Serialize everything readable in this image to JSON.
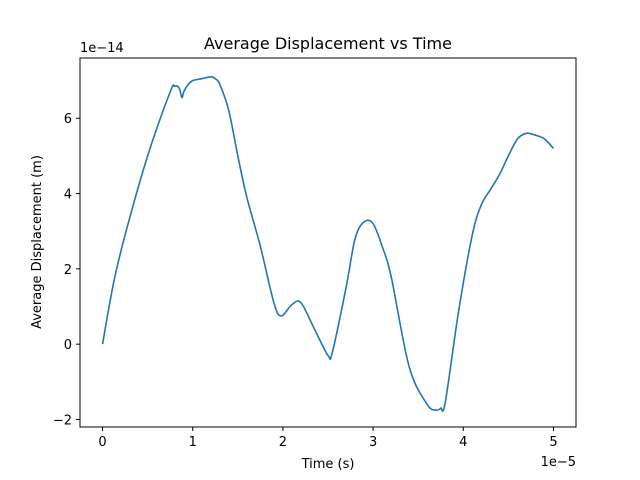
{
  "chart_data": {
    "type": "line",
    "title": "Average Displacement vs Time",
    "xlabel": "Time (s)",
    "ylabel": "Average Displacement (m)",
    "x_offset_label": "1e−5",
    "y_offset_label": "1e−14",
    "xlim": [
      -0.25,
      5.25
    ],
    "ylim": [
      -2.2,
      7.6
    ],
    "x_ticks": [
      {
        "value": 0,
        "label": "0"
      },
      {
        "value": 1,
        "label": "1"
      },
      {
        "value": 2,
        "label": "2"
      },
      {
        "value": 3,
        "label": "3"
      },
      {
        "value": 4,
        "label": "4"
      },
      {
        "value": 5,
        "label": "5"
      }
    ],
    "y_ticks": [
      {
        "value": -2,
        "label": "−2"
      },
      {
        "value": 0,
        "label": "0"
      },
      {
        "value": 2,
        "label": "2"
      },
      {
        "value": 4,
        "label": "4"
      },
      {
        "value": 6,
        "label": "6"
      }
    ],
    "grid": false,
    "series": [
      {
        "color": "#1f77b4",
        "x": [
          0,
          0.12,
          0.25,
          0.5,
          0.75,
          0.8,
          0.85,
          0.88,
          0.9,
          0.95,
          1.0,
          1.1,
          1.2,
          1.25,
          1.3,
          1.4,
          1.5,
          1.6,
          1.75,
          1.9,
          1.98,
          2.1,
          2.2,
          2.35,
          2.5,
          2.55,
          2.7,
          2.8,
          2.9,
          3.0,
          3.1,
          3.2,
          3.4,
          3.6,
          3.7,
          3.75,
          3.8,
          3.95,
          4.1,
          4.2,
          4.3,
          4.4,
          4.5,
          4.6,
          4.7,
          4.8,
          4.9,
          5.0
        ],
        "y": [
          0,
          1.6,
          2.9,
          5.0,
          6.7,
          6.85,
          6.8,
          6.55,
          6.7,
          6.9,
          7.0,
          7.05,
          7.1,
          7.05,
          6.9,
          6.2,
          5.0,
          3.9,
          2.6,
          1.1,
          0.75,
          1.05,
          1.1,
          0.4,
          -0.3,
          -0.2,
          1.5,
          2.8,
          3.25,
          3.2,
          2.6,
          1.8,
          -0.6,
          -1.6,
          -1.75,
          -1.7,
          -1.55,
          0.9,
          2.9,
          3.7,
          4.1,
          4.5,
          5.0,
          5.45,
          5.6,
          5.55,
          5.45,
          5.2
        ]
      }
    ]
  }
}
